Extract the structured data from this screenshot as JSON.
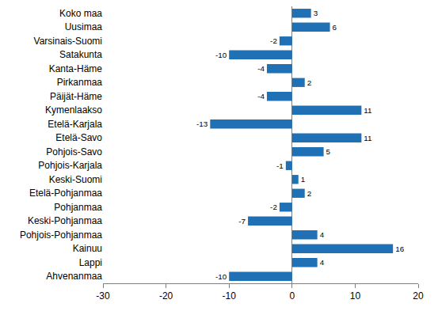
{
  "chart_data": {
    "type": "bar",
    "orientation": "horizontal",
    "categories": [
      "Koko maa",
      "Uusimaa",
      "Varsinais-Suomi",
      "Satakunta",
      "Kanta-Häme",
      "Pirkanmaa",
      "Päijät-Häme",
      "Kymenlaakso",
      "Etelä-Karjala",
      "Etelä-Savo",
      "Pohjois-Savo",
      "Pohjois-Karjala",
      "Keski-Suomi",
      "Etelä-Pohjanmaa",
      "Pohjanmaa",
      "Keski-Pohjanmaa",
      "Pohjois-Pohjanmaa",
      "Kainuu",
      "Lappi",
      "Ahvenanmaa"
    ],
    "values": [
      3,
      6,
      -2,
      -10,
      -4,
      2,
      -4,
      11,
      -13,
      11,
      5,
      -1,
      1,
      2,
      -2,
      -7,
      4,
      16,
      4,
      -10
    ],
    "color": "#1f70b4",
    "xlim": [
      -30,
      20
    ],
    "xticks": [
      -30,
      -20,
      -10,
      0,
      10,
      20
    ],
    "grid": false,
    "data_labels": true
  }
}
